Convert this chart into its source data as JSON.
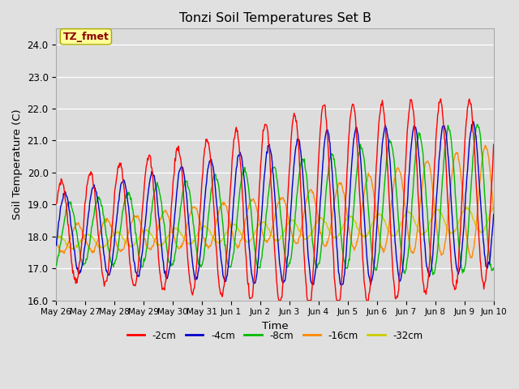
{
  "title": "Tonzi Soil Temperatures Set B",
  "xlabel": "Time",
  "ylabel": "Soil Temperature (C)",
  "ylim": [
    16.0,
    24.5
  ],
  "yticks": [
    16.0,
    17.0,
    18.0,
    19.0,
    20.0,
    21.0,
    22.0,
    23.0,
    24.0
  ],
  "annotation_text": "TZ_fmet",
  "annotation_color": "#8B0000",
  "annotation_bg": "#FFFF99",
  "annotation_edge": "#AAAA00",
  "series_colors": {
    "-2cm": "#FF0000",
    "-4cm": "#0000CC",
    "-8cm": "#00BB00",
    "-16cm": "#FF8800",
    "-32cm": "#CCCC00"
  },
  "legend_entries": [
    "-2cm",
    "-4cm",
    "-8cm",
    "-16cm",
    "-32cm"
  ],
  "x_tick_labels": [
    "May 26",
    "May 27",
    "May 28",
    "May 29",
    "May 30",
    "May 31",
    "Jun 1",
    "Jun 2",
    "Jun 3",
    "Jun 4",
    "Jun 5",
    "Jun 6",
    "Jun 7",
    "Jun 8",
    "Jun 9",
    "Jun 10"
  ],
  "fig_bg": "#E0E0E0",
  "ax_bg": "#DCDCDC",
  "grid_color": "#FFFFFF",
  "n_days": 15,
  "pts_per_day": 48
}
